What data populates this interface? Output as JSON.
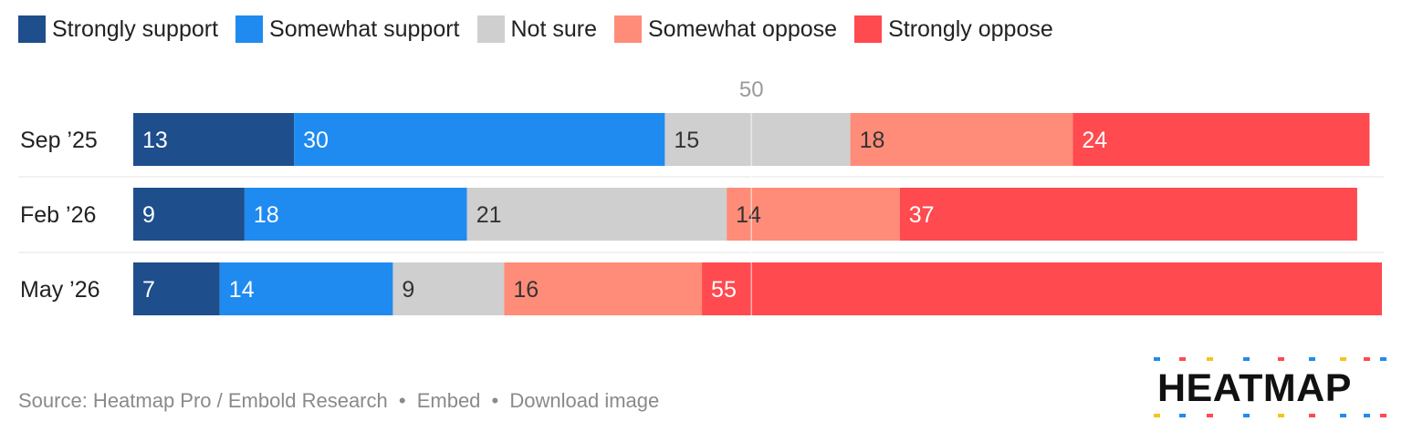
{
  "legend": [
    {
      "label": "Strongly support",
      "color": "#1f4e8c"
    },
    {
      "label": "Somewhat support",
      "color": "#1f8bf0"
    },
    {
      "label": "Not sure",
      "color": "#cfcfcf"
    },
    {
      "label": "Somewhat oppose",
      "color": "#ff8c78"
    },
    {
      "label": "Strongly oppose",
      "color": "#ff4a4f"
    }
  ],
  "chart_data": {
    "type": "bar",
    "orientation": "horizontal",
    "stacked": true,
    "categories": [
      "Sep ’25",
      "Feb ’26",
      "May ’26"
    ],
    "series": [
      {
        "name": "Strongly support",
        "values": [
          13,
          9,
          7
        ],
        "color": "#1f4e8c"
      },
      {
        "name": "Somewhat support",
        "values": [
          30,
          18,
          14
        ],
        "color": "#1f8bf0"
      },
      {
        "name": "Not sure",
        "values": [
          15,
          21,
          9
        ],
        "color": "#cfcfcf"
      },
      {
        "name": "Somewhat oppose",
        "values": [
          18,
          14,
          16
        ],
        "color": "#ff8c78"
      },
      {
        "name": "Strongly oppose",
        "values": [
          24,
          37,
          55
        ],
        "color": "#ff4a4f"
      }
    ],
    "reference_line": {
      "value": 50,
      "label": "50"
    },
    "xlim": [
      0,
      101
    ]
  },
  "footer": {
    "source": "Source: Heatmap Pro / Embold Research",
    "bullet": "•",
    "embed": "Embed",
    "download": "Download image"
  },
  "logo": {
    "text": "HEATMAP"
  }
}
